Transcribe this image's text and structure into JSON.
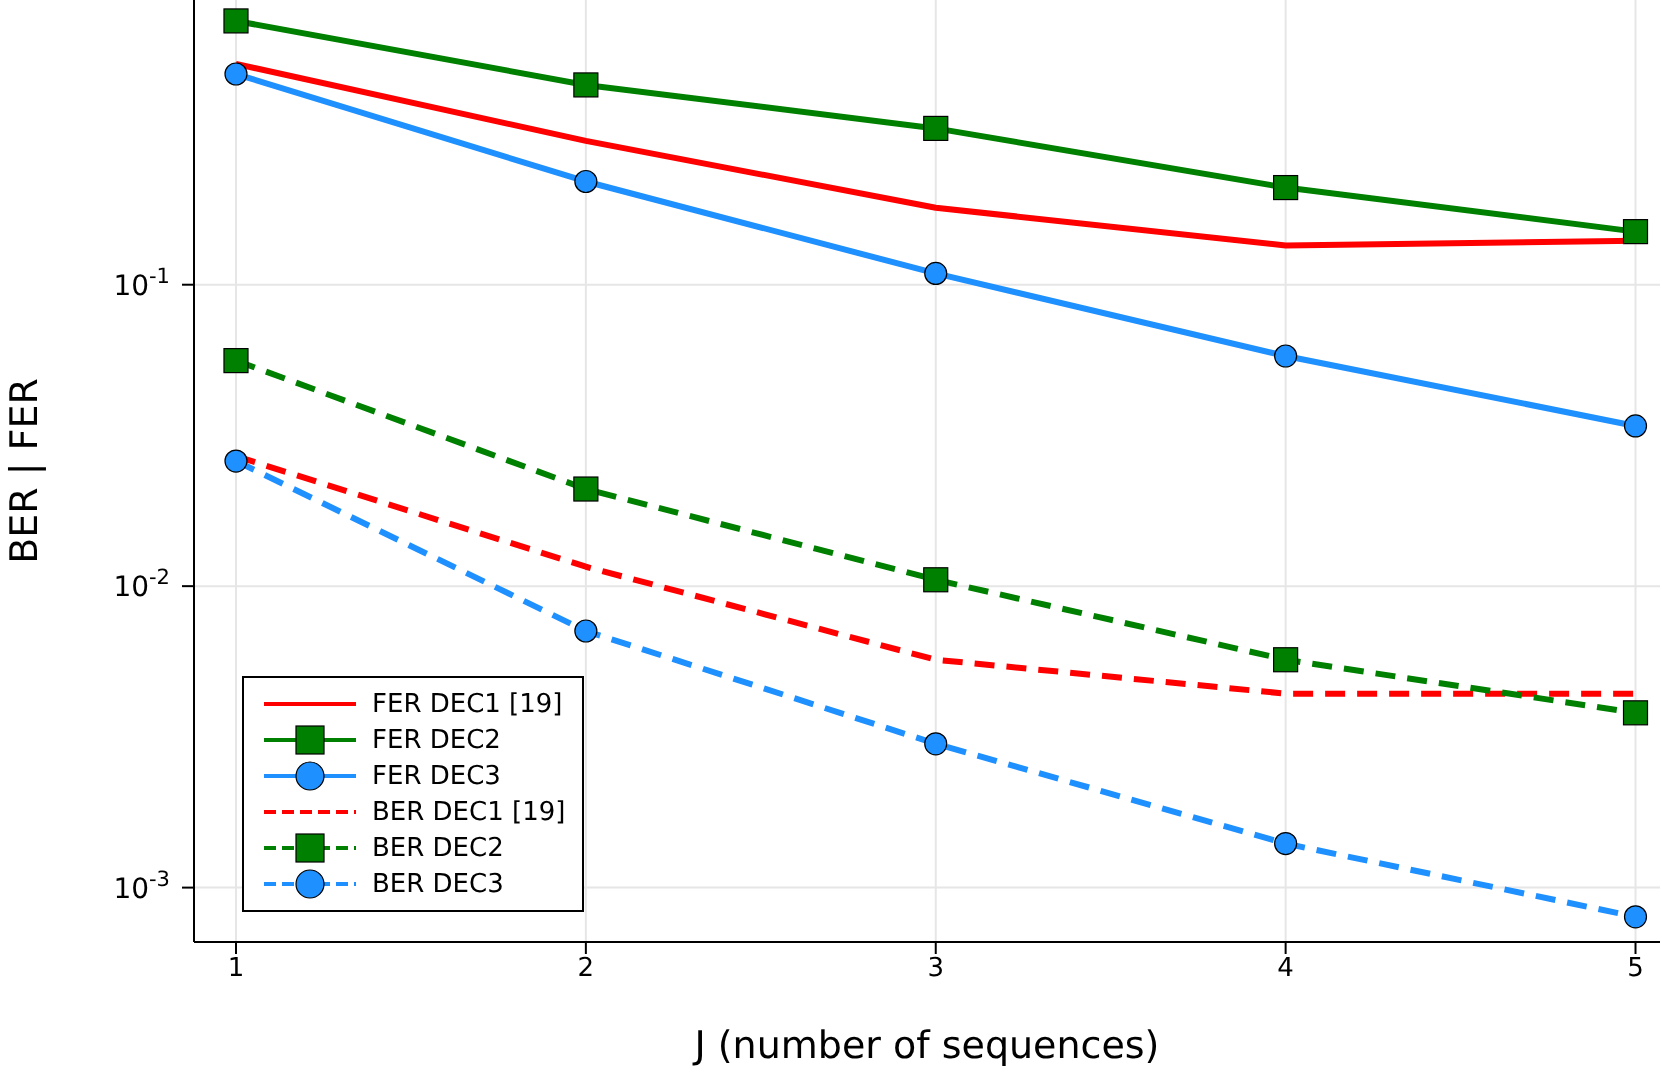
{
  "chart_data": {
    "type": "line",
    "xlabel": "J (number of sequences)",
    "ylabel": "BER | FER",
    "x": [
      1,
      2,
      3,
      4,
      5
    ],
    "series": [
      {
        "name": "FER DEC1 [19]",
        "color": "#ff0000",
        "values": [
          0.54,
          0.3,
          0.18,
          0.135,
          0.14
        ],
        "marker": "none",
        "line_style": "solid"
      },
      {
        "name": "FER DEC2",
        "color": "#008000",
        "values": [
          0.75,
          0.46,
          0.33,
          0.21,
          0.15
        ],
        "marker": "square",
        "line_style": "solid"
      },
      {
        "name": "FER DEC3",
        "color": "#1e90ff",
        "values": [
          0.5,
          0.22,
          0.109,
          0.058,
          0.034
        ],
        "marker": "circle",
        "line_style": "solid"
      },
      {
        "name": "BER DEC1 [19]",
        "color": "#ff0000",
        "values": [
          0.027,
          0.0116,
          0.0057,
          0.0044,
          0.0044
        ],
        "marker": "none",
        "line_style": "dashed"
      },
      {
        "name": "BER DEC2",
        "color": "#008000",
        "values": [
          0.056,
          0.021,
          0.0105,
          0.0057,
          0.0038
        ],
        "marker": "square",
        "line_style": "dashed"
      },
      {
        "name": "BER DEC3",
        "color": "#1e90ff",
        "values": [
          0.026,
          0.0071,
          0.003,
          0.0014,
          0.0008
        ],
        "marker": "circle",
        "line_style": "dashed"
      }
    ],
    "xlim": [
      0.88,
      5.07
    ],
    "xticks": [
      1,
      2,
      3,
      4,
      5
    ],
    "ylim": [
      0.00066,
      0.88
    ],
    "log": "y",
    "yticks": [
      {
        "value": 0.001,
        "label": "10$^{-3}$"
      },
      {
        "value": 0.01,
        "label": "10$^{-2}$"
      },
      {
        "value": 0.1,
        "label": "10$^{-1}$"
      }
    ],
    "grid": true,
    "legend": "bottom left"
  }
}
